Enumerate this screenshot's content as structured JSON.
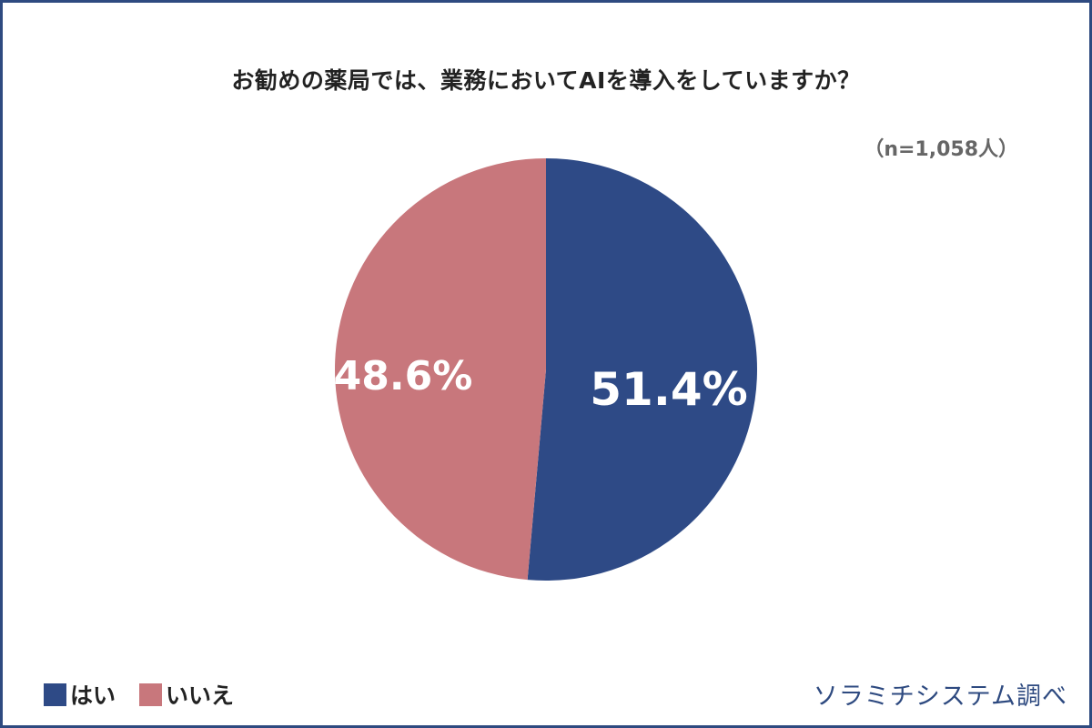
{
  "title": "お勧めの薬局では、業務においてAIを導入をしていますか？",
  "sample_size": "（n=1,058人）",
  "source": "ソラミチシステム調べ",
  "colors": {
    "yes": "#2e4a86",
    "no": "#c8777c",
    "frame": "#2e4a80"
  },
  "legend": [
    {
      "label": "はい",
      "color": "#2e4a86"
    },
    {
      "label": "いいえ",
      "color": "#c8777c"
    }
  ],
  "labels": {
    "yes": "51.4%",
    "no": "48.6%"
  },
  "chart_data": {
    "type": "pie",
    "title": "お勧めの薬局では、業務においてAIを導入をしていますか？",
    "subtitle": "（n=1,058人）",
    "categories": [
      "はい",
      "いいえ"
    ],
    "values": [
      51.4,
      48.6
    ],
    "unit": "%",
    "legend_position": "bottom-left",
    "start_angle": "12 o'clock, clockwise",
    "annotation": "ソラミチシステム調べ"
  }
}
